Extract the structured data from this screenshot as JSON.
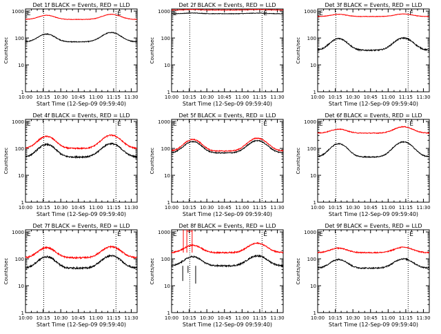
{
  "chart_data": {
    "type": "line",
    "ylabel": "Counts/sec",
    "xlabel": "Start Time (12-Sep-09 09:59:40)",
    "x_ticks": [
      "10:00",
      "10:15",
      "10:30",
      "10:45",
      "11:00",
      "11:15",
      "11:30"
    ],
    "y_ticks": [
      "1",
      "10",
      "100",
      "1000"
    ],
    "y_scale": "log",
    "ylim": [
      1,
      1200
    ],
    "xlim_minutes": [
      0,
      95
    ],
    "series_colors": {
      "events": "#000000",
      "lld": "#ff0000"
    },
    "vlines_minutes": [
      15.5,
      77
    ],
    "marker_label": "E",
    "markers_minutes": [
      0,
      77
    ],
    "panels": [
      {
        "title": "Det 1f BLACK = Events, RED = LLD",
        "events": {
          "base": 72,
          "peak1": 140,
          "peak2": 160,
          "noise": 0.03
        },
        "lld": {
          "base": 490,
          "peak1": 700,
          "peak2": 760,
          "noise": 0.02
        }
      },
      {
        "title": "Det 2f BLACK = Events, RED = LLD",
        "events": {
          "base": 800,
          "peak1": 850,
          "peak2": 840,
          "noise": 0.02
        },
        "lld": {
          "base": 1100,
          "peak1": 1150,
          "peak2": 1150,
          "noise": 0.02
        }
      },
      {
        "title": "Det 3f BLACK = Events, RED = LLD",
        "events": {
          "base": 35,
          "peak1": 95,
          "peak2": 100,
          "noise": 0.05
        },
        "lld": {
          "base": 630,
          "peak1": 760,
          "peak2": 780,
          "noise": 0.02
        }
      },
      {
        "title": "Det 4f BLACK = Events, RED = LLD",
        "events": {
          "base": 48,
          "peak1": 140,
          "peak2": 150,
          "noise": 0.06
        },
        "lld": {
          "base": 100,
          "peak1": 280,
          "peak2": 310,
          "noise": 0.05
        }
      },
      {
        "title": "Det 5f BLACK = Events, RED = LLD",
        "events": {
          "base": 68,
          "peak1": 180,
          "peak2": 195,
          "noise": 0.04
        },
        "lld": {
          "base": 80,
          "peak1": 215,
          "peak2": 240,
          "noise": 0.04
        }
      },
      {
        "title": "Det 6f BLACK = Events, RED = LLD",
        "events": {
          "base": 48,
          "peak1": 150,
          "peak2": 175,
          "noise": 0.04
        },
        "lld": {
          "base": 370,
          "peak1": 520,
          "peak2": 640,
          "noise": 0.03
        }
      },
      {
        "title": "Det 7f BLACK = Events, RED = LLD",
        "events": {
          "base": 45,
          "peak1": 120,
          "peak2": 130,
          "noise": 0.07
        },
        "lld": {
          "base": 110,
          "peak1": 260,
          "peak2": 280,
          "noise": 0.06
        }
      },
      {
        "title": "Det 8f BLACK = Events, RED = LLD",
        "events": {
          "base": 55,
          "peak1": 120,
          "peak2": 130,
          "noise": 0.06
        },
        "lld": {
          "base": 170,
          "peak1": 320,
          "peak2": 380,
          "noise": 0.05
        },
        "spikes": true
      },
      {
        "title": "Det 9f BLACK = Events, RED = LLD",
        "events": {
          "base": 45,
          "peak1": 95,
          "peak2": 100,
          "noise": 0.05
        },
        "lld": {
          "base": 170,
          "peak1": 250,
          "peak2": 270,
          "noise": 0.04
        }
      }
    ]
  }
}
